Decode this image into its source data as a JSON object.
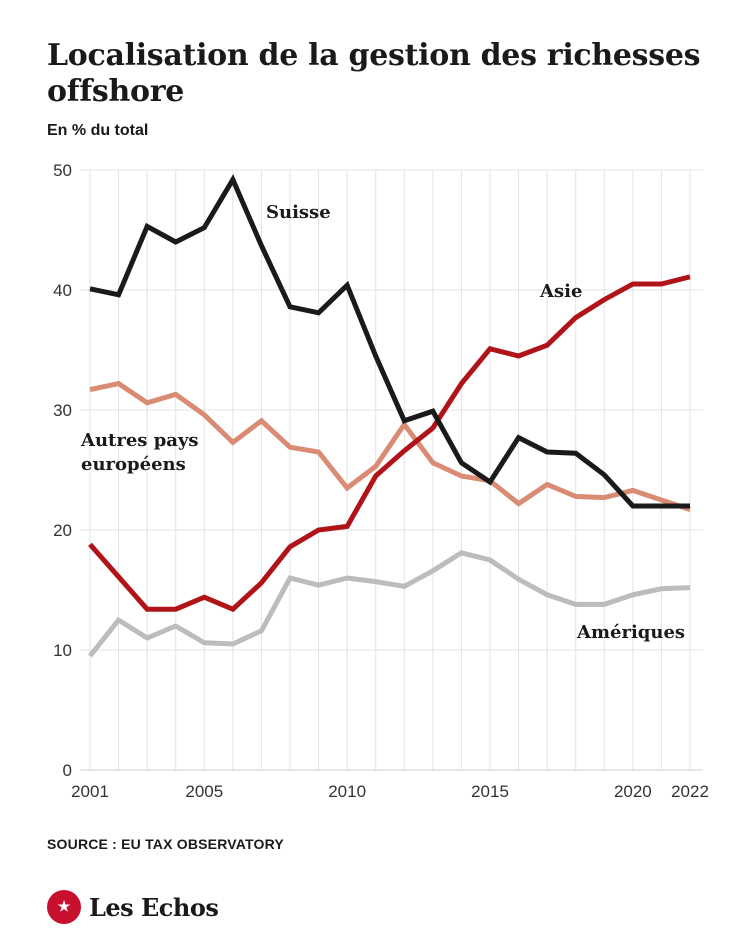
{
  "title": "Localisation de la gestion des richesses offshore",
  "subtitle": "En % du total",
  "source": "SOURCE : EU TAX OBSERVATORY",
  "brand": {
    "name": "Les Echos",
    "logo_icon": "echos-rooster-icon"
  },
  "chart_data": {
    "type": "line",
    "title": "Localisation de la gestion des richesses offshore",
    "subtitle": "En % du total",
    "xlabel": "",
    "ylabel": "",
    "ylim": [
      0,
      50
    ],
    "xlim": [
      2001,
      2022
    ],
    "yticks": [
      0,
      10,
      20,
      30,
      40,
      50
    ],
    "xticks": [
      2001,
      2005,
      2010,
      2015,
      2020,
      2022
    ],
    "grid": true,
    "x": [
      2001,
      2002,
      2003,
      2004,
      2005,
      2006,
      2007,
      2008,
      2009,
      2010,
      2011,
      2012,
      2013,
      2014,
      2015,
      2016,
      2017,
      2018,
      2019,
      2020,
      2021,
      2022
    ],
    "series": [
      {
        "name": "Amériques",
        "color": "#bcbcbc",
        "values": [
          9.5,
          12.5,
          11,
          12,
          10.6,
          10.5,
          11.6,
          16,
          15.4,
          16,
          15.7,
          15.3,
          16.6,
          18.1,
          17.5,
          15.9,
          14.6,
          13.8,
          13.8,
          14.6,
          15.1,
          15.2
        ]
      },
      {
        "name": "Autres pays européens",
        "color": "#d98b74",
        "values": [
          31.7,
          32.2,
          30.6,
          31.3,
          29.6,
          27.3,
          29.1,
          26.9,
          26.5,
          23.5,
          25.3,
          28.8,
          25.6,
          24.5,
          24.1,
          22.2,
          23.8,
          22.8,
          22.7,
          23.3,
          22.5,
          21.7
        ]
      },
      {
        "name": "Asie",
        "color": "#b01419",
        "values": [
          18.8,
          16.1,
          13.4,
          13.4,
          14.4,
          13.4,
          15.6,
          18.6,
          20,
          20.3,
          24.5,
          26.6,
          28.5,
          32.2,
          35.1,
          34.5,
          35.4,
          37.7,
          39.2,
          40.5,
          40.5,
          41.1
        ]
      },
      {
        "name": "Suisse",
        "color": "#1a1a1a",
        "values": [
          40.1,
          39.6,
          45.3,
          44,
          45.2,
          49.2,
          43.7,
          38.6,
          38.1,
          40.4,
          34.5,
          29.1,
          29.9,
          25.6,
          24,
          27.7,
          26.5,
          26.4,
          24.6,
          22,
          22,
          22
        ]
      }
    ],
    "annotations": [
      "Suisse",
      "Asie",
      "Autres pays européens",
      "Amériques"
    ]
  }
}
